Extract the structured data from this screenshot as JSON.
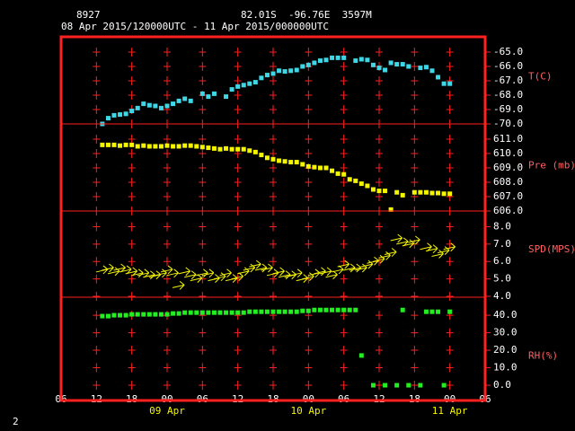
{
  "header": {
    "station": "8927",
    "location": "82.01S  -96.76E  3597M",
    "period": "08 Apr 2015/120000UTC - 11 Apr 2015/000000UTC"
  },
  "footer": "2",
  "chart_data": [
    {
      "type": "scatter",
      "label": "T(C)",
      "color": "#3fd7e6",
      "grid": true,
      "xlim": [
        6,
        78
      ],
      "x": [
        13,
        14,
        15,
        16,
        17,
        18,
        19,
        20,
        21,
        22,
        23,
        24,
        25,
        26,
        27,
        28,
        29,
        30,
        31,
        32,
        33,
        34,
        35,
        36,
        37,
        38,
        39,
        40,
        41,
        42,
        43,
        44,
        45,
        46,
        47,
        48,
        49,
        50,
        51,
        52,
        53,
        54,
        55,
        56,
        57,
        58,
        59,
        60,
        61,
        62,
        63,
        64,
        65,
        66,
        67,
        68,
        69,
        70,
        71,
        72
      ],
      "values": [
        -70.0,
        -69.6,
        -69.4,
        -69.35,
        -69.3,
        -69.1,
        -68.9,
        -68.6,
        -68.7,
        -68.75,
        -68.9,
        -68.75,
        -68.6,
        -68.4,
        -68.25,
        -68.4,
        null,
        -67.9,
        -68.1,
        -67.9,
        null,
        -68.1,
        -67.6,
        -67.4,
        -67.3,
        -67.2,
        -67.1,
        -66.8,
        -66.6,
        -66.5,
        -66.3,
        -66.35,
        -66.3,
        -66.25,
        -66.0,
        -65.9,
        -65.75,
        -65.6,
        -65.55,
        -65.4,
        -65.4,
        -65.4,
        null,
        -65.6,
        -65.5,
        -65.55,
        -65.9,
        -66.1,
        -66.25,
        -65.75,
        -65.85,
        -65.85,
        -66.0,
        null,
        -66.1,
        -66.05,
        -66.3,
        -66.75,
        -67.2,
        -67.2
      ],
      "ylim": [
        -70,
        -63.94
      ],
      "yticks": [
        {
          "value": -65,
          "label": "-65.0"
        },
        {
          "value": -66,
          "label": "-66.0"
        },
        {
          "value": -67,
          "label": "-67.0"
        },
        {
          "value": -68,
          "label": "-68.0"
        },
        {
          "value": -69,
          "label": "-69.0"
        },
        {
          "value": -70,
          "label": "-70.0"
        }
      ]
    },
    {
      "type": "scatter",
      "label": "Pre (mb)",
      "color": "#f5f500",
      "grid": true,
      "xlim": [
        6,
        78
      ],
      "x": [
        13,
        14,
        15,
        16,
        17,
        18,
        19,
        20,
        21,
        22,
        23,
        24,
        25,
        26,
        27,
        28,
        29,
        30,
        31,
        32,
        33,
        34,
        35,
        36,
        37,
        38,
        39,
        40,
        41,
        42,
        43,
        44,
        45,
        46,
        47,
        48,
        49,
        50,
        51,
        52,
        53,
        54,
        55,
        56,
        57,
        58,
        59,
        60,
        61,
        62,
        63,
        64,
        65,
        66,
        67,
        68,
        69,
        70,
        71,
        72
      ],
      "values": [
        610.6,
        610.6,
        610.6,
        610.55,
        610.6,
        610.6,
        610.5,
        610.55,
        610.5,
        610.5,
        610.5,
        610.55,
        610.5,
        610.5,
        610.55,
        610.55,
        610.5,
        610.45,
        610.4,
        610.35,
        610.3,
        610.35,
        610.3,
        610.3,
        610.3,
        610.2,
        610.1,
        609.9,
        609.7,
        609.6,
        609.5,
        609.45,
        609.4,
        609.4,
        609.25,
        609.1,
        609.05,
        609.0,
        609.0,
        608.8,
        608.6,
        608.55,
        608.2,
        608.1,
        607.9,
        607.75,
        607.5,
        607.4,
        607.4,
        606.1,
        607.3,
        607.1,
        null,
        607.3,
        607.3,
        607.3,
        607.25,
        607.25,
        607.2,
        607.2
      ],
      "ylim": [
        606,
        612.06
      ],
      "yticks": [
        {
          "value": 611,
          "label": "611.0"
        },
        {
          "value": 610,
          "label": "610.0"
        },
        {
          "value": 609,
          "label": "609.0"
        },
        {
          "value": 608,
          "label": "608.0"
        },
        {
          "value": 607,
          "label": "607.0"
        },
        {
          "value": 606,
          "label": "606.0"
        }
      ]
    },
    {
      "type": "wind",
      "label": "SPD(MPS)",
      "color": "#f5f500",
      "grid": true,
      "xlim": [
        6,
        78
      ],
      "x": [
        13,
        14,
        15,
        16,
        17,
        18,
        19,
        20,
        21,
        22,
        23,
        24,
        25,
        26,
        27,
        28,
        29,
        30,
        31,
        32,
        33,
        34,
        35,
        36,
        37,
        38,
        39,
        40,
        41,
        42,
        43,
        44,
        45,
        46,
        47,
        48,
        49,
        50,
        51,
        52,
        53,
        54,
        55,
        56,
        57,
        58,
        59,
        60,
        61,
        62,
        63,
        64,
        65,
        66,
        67,
        68,
        69,
        70,
        71,
        72
      ],
      "values": [
        5.5,
        5.6,
        5.4,
        5.6,
        5.5,
        5.4,
        5.3,
        5.3,
        5.2,
        5.2,
        5.3,
        5.5,
        5.3,
        4.6,
        5.4,
        5.2,
        5.0,
        5.3,
        5.3,
        5.0,
        5.1,
        5.3,
        5.0,
        5.1,
        5.4,
        5.6,
        5.8,
        5.6,
        5.6,
        5.3,
        5.4,
        5.2,
        5.2,
        5.3,
        5.0,
        5.1,
        5.3,
        5.4,
        5.4,
        5.2,
        5.5,
        5.8,
        5.6,
        5.6,
        5.6,
        5.8,
        6.0,
        6.1,
        6.3,
        6.5,
        7.3,
        7.1,
        7.0,
        7.2,
        null,
        6.8,
        6.7,
        6.4,
        6.6,
        6.8
      ],
      "ylim": [
        3.95,
        8.9
      ],
      "yticks": [
        {
          "value": 8,
          "label": "8.0"
        },
        {
          "value": 7,
          "label": "7.0"
        },
        {
          "value": 6,
          "label": "6.0"
        },
        {
          "value": 5,
          "label": "5.0"
        },
        {
          "value": 4,
          "label": "4.0"
        }
      ]
    },
    {
      "type": "scatter",
      "label": "RH(%)",
      "color": "#22ee22",
      "grid": true,
      "xlim": [
        6,
        78
      ],
      "xticks": [
        {
          "value": 6,
          "label": "06"
        },
        12,
        18,
        {
          "value": 24,
          "label": "00"
        },
        {
          "value": 30,
          "label": "06"
        },
        {
          "value": 36,
          "label": "12"
        },
        {
          "value": 42,
          "label": "18"
        },
        {
          "value": 48,
          "label": "00"
        },
        {
          "value": 54,
          "label": "06"
        },
        {
          "value": 60,
          "label": "12"
        },
        {
          "value": 66,
          "label": "18"
        },
        {
          "value": 72,
          "label": "00"
        },
        {
          "value": 78,
          "label": "06"
        }
      ],
      "date_labels": [
        {
          "value": 24,
          "label": "09 Apr"
        },
        {
          "value": 48,
          "label": "10 Apr"
        },
        {
          "value": 72,
          "label": "11 Apr"
        }
      ],
      "x": [
        13,
        14,
        15,
        16,
        17,
        18,
        19,
        20,
        21,
        22,
        23,
        24,
        25,
        26,
        27,
        28,
        29,
        30,
        31,
        32,
        33,
        34,
        35,
        36,
        37,
        38,
        39,
        40,
        41,
        42,
        43,
        44,
        45,
        46,
        47,
        48,
        49,
        50,
        51,
        52,
        53,
        54,
        55,
        56,
        57,
        58,
        59,
        60,
        61,
        62,
        63,
        64,
        65,
        66,
        67,
        68,
        69,
        70,
        71,
        72
      ],
      "values": [
        39.5,
        39.5,
        40,
        40,
        40,
        40.5,
        40.5,
        40.5,
        40.5,
        40.5,
        40.5,
        40.5,
        41,
        41,
        41.5,
        41.5,
        41.5,
        41.5,
        41.5,
        41.5,
        41.5,
        41.5,
        41.5,
        41.5,
        41.5,
        42,
        42,
        42,
        42,
        42,
        42,
        42,
        42,
        42,
        42.5,
        42.5,
        43,
        43,
        43,
        43,
        43,
        43,
        43,
        43,
        17,
        null,
        0,
        null,
        0,
        null,
        0,
        43,
        0,
        null,
        0,
        42,
        42,
        42,
        0,
        42
      ],
      "ylim": [
        -8.7,
        50.3
      ],
      "yticks": [
        {
          "value": 40,
          "label": "40.0"
        },
        {
          "value": 30,
          "label": "30.0"
        },
        {
          "value": 20,
          "label": "20.0"
        },
        {
          "value": 10,
          "label": "10.0"
        },
        {
          "value": 0,
          "label": "0.0"
        }
      ]
    }
  ]
}
